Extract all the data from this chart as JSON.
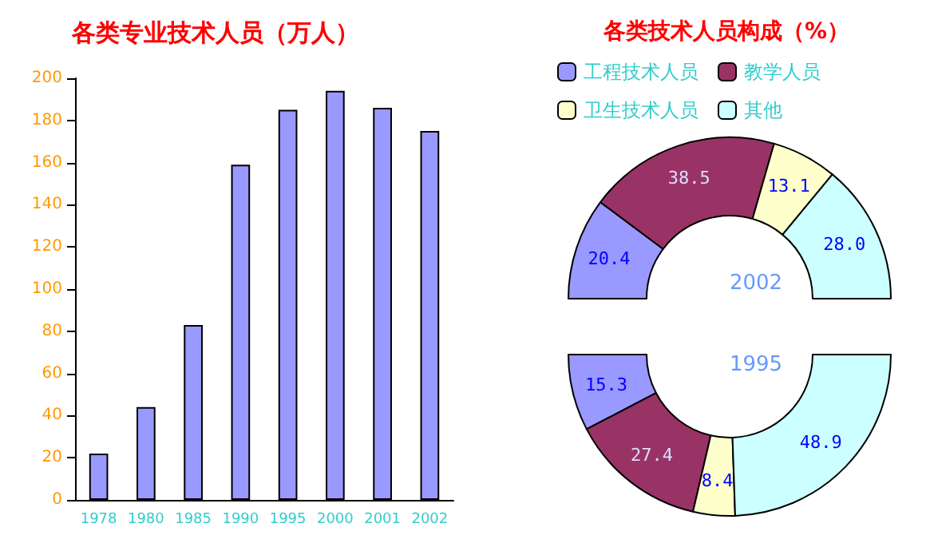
{
  "chart_data": [
    {
      "type": "bar",
      "title": "各类专业技术人员（万人）",
      "categories": [
        "1978",
        "1980",
        "1985",
        "1990",
        "1995",
        "2000",
        "2001",
        "2002"
      ],
      "values": [
        22,
        44,
        83,
        159,
        185,
        194,
        186,
        175
      ],
      "color": "#9999ff",
      "ylim": [
        0,
        200
      ],
      "yticks": [
        0,
        20,
        40,
        60,
        80,
        100,
        120,
        140,
        160,
        180,
        200
      ],
      "grid": false,
      "legend": false
    },
    {
      "type": "donut",
      "title": "各类技术人员构成（%）",
      "subtitle": "2002",
      "categories": [
        "工程技术人员",
        "教学人员",
        "卫生技术人员",
        "其他"
      ],
      "values": [
        20.4,
        38.5,
        13.1,
        28.0
      ],
      "value_labels": [
        "20.4",
        "38.5",
        "13.1",
        "28.0"
      ],
      "colors": [
        "#9999ff",
        "#993366",
        "#ffffcc",
        "#ccffff"
      ],
      "legend": "top"
    },
    {
      "type": "donut",
      "subtitle": "1995",
      "values": [
        15.3,
        27.4,
        8.4,
        48.9
      ],
      "value_labels": [
        "15.3",
        "27.4",
        "8.4",
        "48.9"
      ],
      "colors": [
        "#9999ff",
        "#993366",
        "#ffffcc",
        "#ccffff"
      ],
      "legend": false
    }
  ]
}
